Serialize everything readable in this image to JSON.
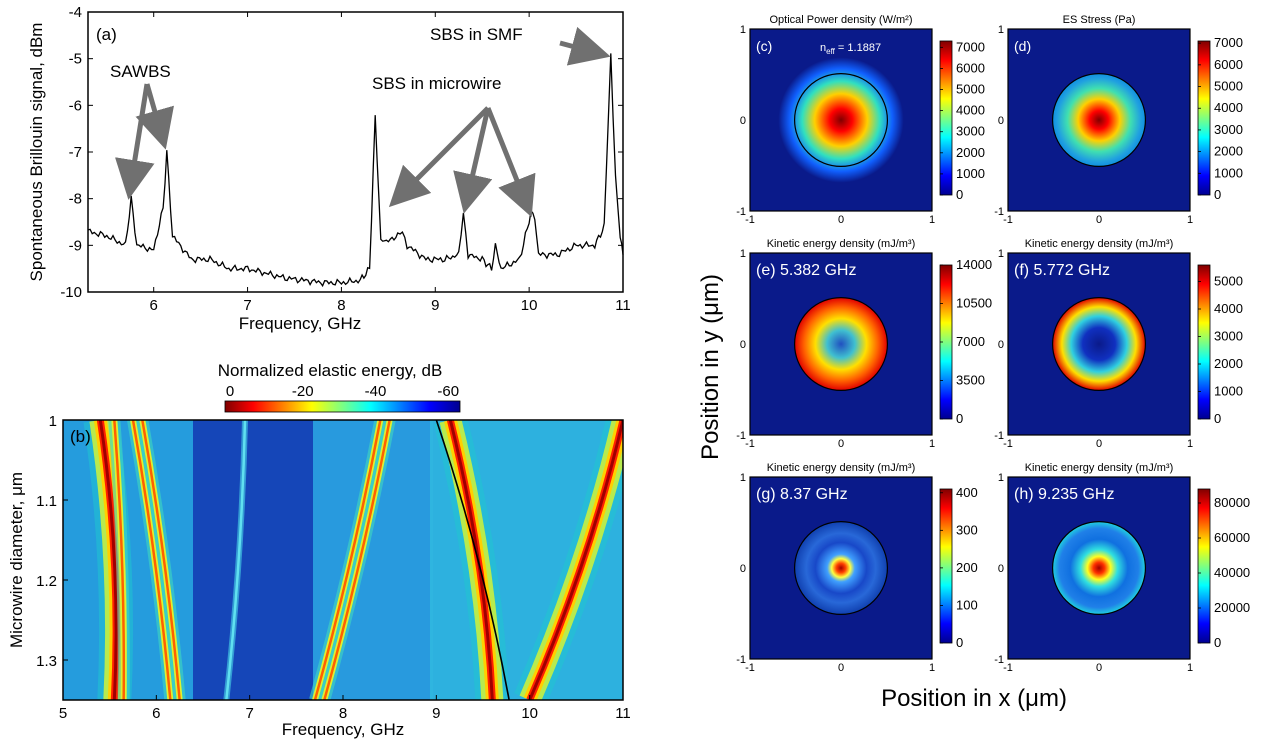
{
  "colors": {
    "axis": "#000000",
    "arrow": "#707070",
    "spectrum_line": "#000000",
    "panel_bg": "#0a1a8a"
  },
  "panel_a": {
    "label": "(a)",
    "xlabel": "Frequency, GHz",
    "ylabel": "Spontaneous Brillouin signal, dBm",
    "xticks": [
      "6",
      "7",
      "8",
      "9",
      "10",
      "11"
    ],
    "yticks": [
      "-4",
      "-5",
      "-6",
      "-7",
      "-8",
      "-9",
      "-10"
    ],
    "annotations": [
      "SAWBS",
      "SBS in microwire",
      "SBS in SMF"
    ]
  },
  "panel_b": {
    "label": "(b)",
    "xlabel": "Frequency, GHz",
    "ylabel": "Microwire diameter, μm",
    "xticks": [
      "5",
      "6",
      "7",
      "8",
      "9",
      "10",
      "11"
    ],
    "yticks": [
      "1",
      "1.1",
      "1.2",
      "1.3"
    ],
    "colorbar_title": "Normalized elastic energy, dB",
    "colorbar_ticks": [
      "0",
      "-20",
      "-40",
      "-60"
    ]
  },
  "maps": {
    "ylabel": "Position in y (μm)",
    "xlabel": "Position in x (μm)",
    "axis_ticks": [
      "-1",
      "0",
      "1"
    ],
    "panels": [
      {
        "id": "c",
        "title": "Optical Power density (W/m²)",
        "label": "(c)",
        "note_main": "n",
        "note_sub": "eff",
        "note_rest": " = 1.1887",
        "cbticks": [
          "7000",
          "6000",
          "5000",
          "4000",
          "3000",
          "2000",
          "1000",
          "0"
        ],
        "cbmax": 7300,
        "profile": "gauss",
        "ring": true
      },
      {
        "id": "d",
        "title": "ES Stress (Pa)",
        "label": "(d)",
        "cbticks": [
          "7000",
          "6000",
          "5000",
          "4000",
          "3000",
          "2000",
          "1000",
          "0"
        ],
        "cbmax": 7100,
        "profile": "gauss",
        "ring": false
      },
      {
        "id": "e",
        "title": "Kinetic energy density (mJ/m³)",
        "label": "(e) 5.382 GHz",
        "cbticks": [
          "14000",
          "10500",
          "7000",
          "3500",
          "0"
        ],
        "cbmax": 14000,
        "profile": "ring",
        "ring": false
      },
      {
        "id": "f",
        "title": "Kinetic energy density (mJ/m³)",
        "label": "(f) 5.772 GHz",
        "cbticks": [
          "5000",
          "4000",
          "3000",
          "2000",
          "1000",
          "0"
        ],
        "cbmax": 5600,
        "profile": "ring2",
        "ring": false
      },
      {
        "id": "g",
        "title": "Kinetic energy density (mJ/m³)",
        "label": "(g) 8.37 GHz",
        "cbticks": [
          "400",
          "300",
          "200",
          "100",
          "0"
        ],
        "cbmax": 410,
        "profile": "spot",
        "ring": false
      },
      {
        "id": "h",
        "title": "Kinetic energy density (mJ/m³)",
        "label": "(h) 9.235 GHz",
        "cbticks": [
          "80000",
          "60000",
          "40000",
          "20000",
          "0"
        ],
        "cbmax": 88000,
        "profile": "spot2",
        "ring": false
      }
    ]
  },
  "chart_data": [
    {
      "type": "line",
      "panel": "a",
      "xlabel": "Frequency, GHz",
      "ylabel": "Spontaneous Brillouin signal, dBm",
      "xlim": [
        5.3,
        11
      ],
      "ylim": [
        -10,
        -4
      ],
      "x": [
        5.3,
        5.5,
        5.7,
        5.76,
        5.82,
        6.0,
        6.1,
        6.14,
        6.2,
        6.4,
        6.6,
        6.8,
        7.0,
        7.2,
        7.4,
        7.6,
        7.8,
        8.0,
        8.2,
        8.3,
        8.36,
        8.42,
        8.5,
        8.6,
        8.65,
        8.7,
        8.9,
        9.1,
        9.25,
        9.3,
        9.35,
        9.5,
        9.6,
        9.64,
        9.7,
        9.9,
        10.02,
        10.06,
        10.1,
        10.3,
        10.5,
        10.7,
        10.8,
        10.87,
        10.92,
        10.97,
        11.0
      ],
      "y": [
        -8.7,
        -8.8,
        -9.0,
        -8.0,
        -9.0,
        -9.1,
        -8.2,
        -7.0,
        -8.8,
        -9.3,
        -9.3,
        -9.5,
        -9.5,
        -9.6,
        -9.7,
        -9.75,
        -9.8,
        -9.8,
        -9.75,
        -9.5,
        -6.25,
        -8.9,
        -8.9,
        -8.8,
        -8.7,
        -9.0,
        -9.3,
        -9.3,
        -9.2,
        -8.3,
        -9.2,
        -9.3,
        -9.5,
        -9.0,
        -9.5,
        -9.3,
        -8.3,
        -8.4,
        -9.2,
        -9.2,
        -9.0,
        -9.0,
        -8.6,
        -4.9,
        -7.5,
        -8.8,
        -9.2
      ],
      "annotations": [
        "SAWBS",
        "SBS in microwire",
        "SBS in SMF"
      ]
    },
    {
      "type": "heatmap",
      "panel": "b",
      "xlabel": "Frequency, GHz",
      "ylabel": "Microwire diameter, μm",
      "xlim": [
        5,
        11
      ],
      "ylim": [
        1,
        1.35
      ],
      "colorbar_title": "Normalized elastic energy, dB",
      "clim": [
        0,
        -60
      ],
      "series": [
        {
          "x": [
            5.4,
            5.55
          ],
          "y": [
            1.0,
            1.35
          ],
          "level": "strong"
        },
        {
          "x": [
            5.55,
            5.65
          ],
          "y": [
            1.0,
            1.35
          ],
          "level": "medium"
        },
        {
          "x": [
            5.75,
            6.15
          ],
          "y": [
            1.0,
            1.35
          ],
          "level": "medium"
        },
        {
          "x": [
            5.85,
            6.25
          ],
          "y": [
            1.0,
            1.35
          ],
          "level": "medium"
        },
        {
          "x": [
            6.95,
            6.75
          ],
          "y": [
            1.0,
            1.35
          ],
          "level": "weak"
        },
        {
          "x": [
            8.4,
            7.7
          ],
          "y": [
            1.0,
            1.35
          ],
          "level": "medium"
        },
        {
          "x": [
            8.5,
            7.8
          ],
          "y": [
            1.0,
            1.35
          ],
          "level": "medium"
        },
        {
          "x": [
            9.15,
            9.6
          ],
          "y": [
            1.0,
            1.35
          ],
          "level": "strong"
        },
        {
          "x": [
            11.0,
            10.0
          ],
          "y": [
            1.0,
            1.35
          ],
          "level": "strong"
        }
      ]
    }
  ]
}
